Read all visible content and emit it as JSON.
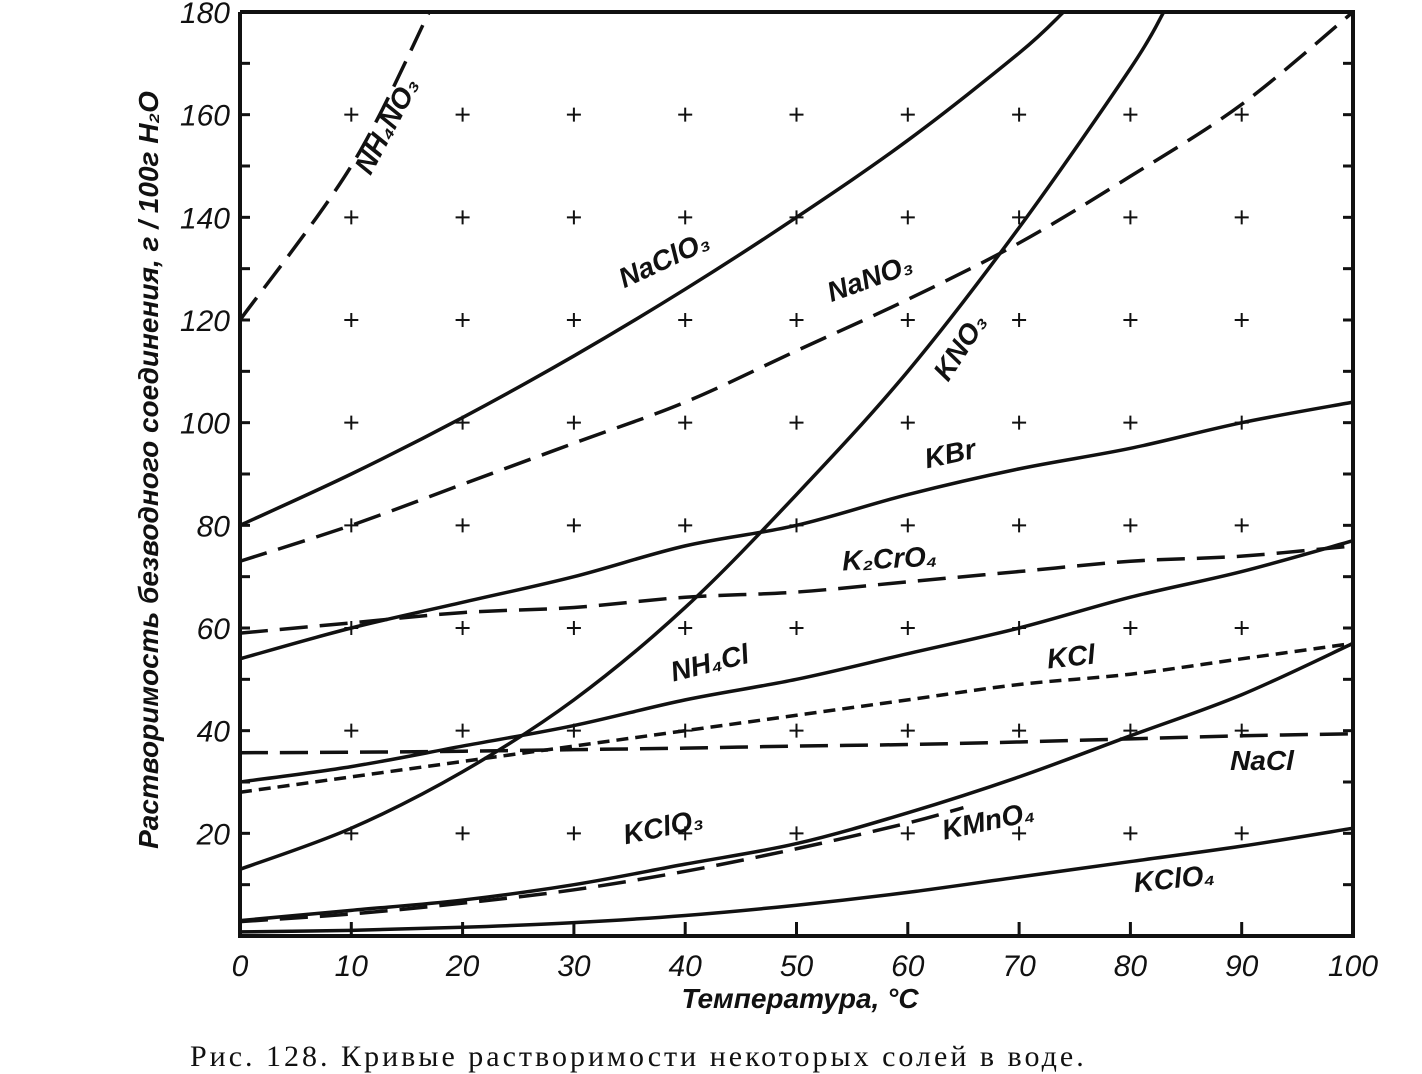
{
  "chart_data": {
    "type": "line",
    "title": "",
    "xlabel": "Температура, °C",
    "ylabel": "Растворимость безводного соединения, г / 100г H₂O",
    "xlim": [
      0,
      100
    ],
    "ylim": [
      0,
      180
    ],
    "x_ticks": [
      "0",
      "10",
      "20",
      "30",
      "40",
      "50",
      "60",
      "70",
      "80",
      "90",
      "100"
    ],
    "y_ticks": [
      "20",
      "40",
      "60",
      "80",
      "100",
      "120",
      "140",
      "160",
      "180"
    ],
    "grid": "plus markers at every 10 °C and 20 g",
    "legend": "none (inline labels)",
    "series": [
      {
        "name": "NH₄NO₃",
        "style": "dash-long",
        "x": [
          0,
          10,
          17
        ],
        "y": [
          120,
          150,
          180
        ]
      },
      {
        "name": "NaClO₃",
        "style": "solid",
        "x": [
          0,
          10,
          20,
          30,
          40,
          50,
          60,
          70,
          74
        ],
        "y": [
          80,
          90,
          101,
          113,
          126,
          140,
          155,
          172,
          180
        ]
      },
      {
        "name": "NaNO₃",
        "style": "dash-long",
        "x": [
          0,
          10,
          20,
          30,
          40,
          50,
          60,
          70,
          80,
          90,
          100
        ],
        "y": [
          73,
          80,
          88,
          96,
          104,
          114,
          124,
          135,
          148,
          162,
          180
        ]
      },
      {
        "name": "KNO₃",
        "style": "solid",
        "x": [
          0,
          10,
          20,
          30,
          40,
          50,
          60,
          70,
          80,
          83
        ],
        "y": [
          13,
          21,
          32,
          46,
          64,
          86,
          110,
          138,
          169,
          180
        ]
      },
      {
        "name": "KBr",
        "style": "solid",
        "x": [
          0,
          10,
          20,
          30,
          40,
          50,
          60,
          70,
          80,
          90,
          100
        ],
        "y": [
          54,
          60,
          65,
          70,
          76,
          80,
          86,
          91,
          95,
          100,
          104
        ]
      },
      {
        "name": "K₂CrO₄",
        "style": "dash-long",
        "x": [
          0,
          10,
          20,
          30,
          40,
          50,
          60,
          70,
          80,
          90,
          100
        ],
        "y": [
          59,
          61,
          63,
          64,
          66,
          67,
          69,
          71,
          73,
          74,
          76
        ]
      },
      {
        "name": "NH₄Cl",
        "style": "solid",
        "x": [
          0,
          10,
          20,
          30,
          40,
          50,
          60,
          70,
          80,
          90,
          100
        ],
        "y": [
          30,
          33,
          37,
          41,
          46,
          50,
          55,
          60,
          66,
          71,
          77
        ]
      },
      {
        "name": "KCl",
        "style": "dash-short",
        "x": [
          0,
          10,
          20,
          30,
          40,
          50,
          60,
          70,
          80,
          90,
          100
        ],
        "y": [
          28,
          31,
          34,
          37,
          40,
          43,
          46,
          49,
          51,
          54,
          57
        ]
      },
      {
        "name": "NaCl",
        "style": "dash-long",
        "x": [
          0,
          10,
          20,
          30,
          40,
          50,
          60,
          70,
          80,
          90,
          100
        ],
        "y": [
          35.7,
          35.8,
          36,
          36.3,
          36.6,
          37,
          37.3,
          37.8,
          38.4,
          39,
          39.4
        ]
      },
      {
        "name": "KClO₃",
        "style": "solid",
        "x": [
          0,
          10,
          20,
          30,
          40,
          50,
          60,
          70,
          80,
          90,
          100
        ],
        "y": [
          3,
          5,
          7,
          10,
          14,
          18,
          24,
          31,
          39,
          47,
          57
        ]
      },
      {
        "name": "KMnO₄",
        "style": "dash-long",
        "x": [
          0,
          10,
          20,
          30,
          40,
          50,
          60,
          65
        ],
        "y": [
          2.8,
          4.3,
          6.4,
          9,
          12.6,
          17,
          22,
          25
        ]
      },
      {
        "name": "KClO₄",
        "style": "solid",
        "x": [
          0,
          10,
          20,
          30,
          40,
          50,
          60,
          70,
          80,
          90,
          100
        ],
        "y": [
          0.8,
          1.1,
          1.7,
          2.6,
          4,
          6,
          8.5,
          11.5,
          14.5,
          17.5,
          21
        ]
      }
    ]
  },
  "caption": "Рис. 128. Кривые растворимости некоторых солей в воде."
}
